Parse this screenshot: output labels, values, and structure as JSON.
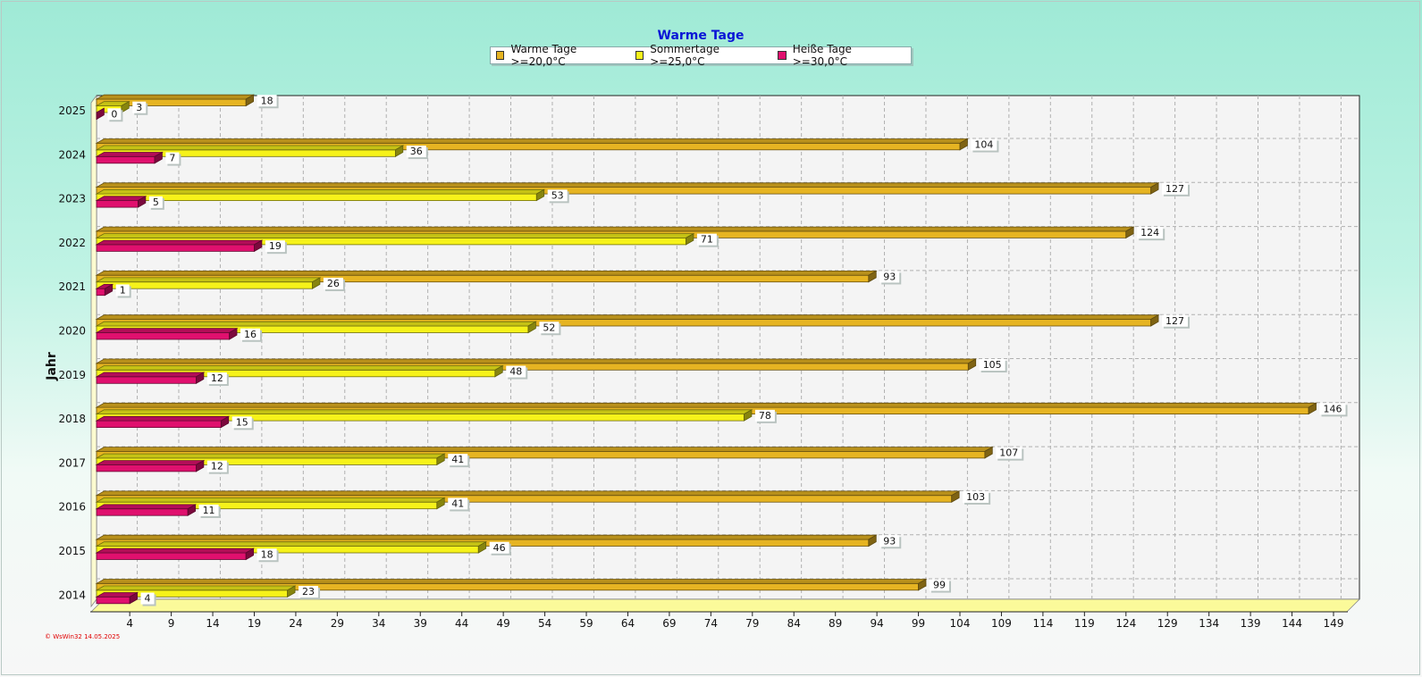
{
  "chart_data": {
    "type": "bar",
    "orientation": "horizontal",
    "title": "Warme Tage",
    "ylabel": "Jahr",
    "xlabel": "",
    "categories": [
      "2025",
      "2024",
      "2023",
      "2022",
      "2021",
      "2020",
      "2019",
      "2018",
      "2017",
      "2016",
      "2015",
      "2014"
    ],
    "series": [
      {
        "name": "Warme Tage >=20,0°C",
        "color": "#e6b422",
        "values": [
          18,
          104,
          127,
          124,
          93,
          127,
          105,
          146,
          107,
          103,
          93,
          99
        ]
      },
      {
        "name": "Sommertage >=25,0°C",
        "color": "#f6f21a",
        "values": [
          3,
          36,
          53,
          71,
          26,
          52,
          48,
          78,
          41,
          41,
          46,
          23
        ]
      },
      {
        "name": "Heiße Tage >=30,0°C",
        "color": "#e0106e",
        "values": [
          0,
          7,
          5,
          19,
          1,
          16,
          12,
          15,
          12,
          11,
          18,
          4
        ]
      }
    ],
    "xticks": [
      4,
      9,
      14,
      19,
      24,
      29,
      34,
      39,
      44,
      49,
      54,
      59,
      64,
      69,
      74,
      79,
      84,
      89,
      94,
      99,
      104,
      109,
      114,
      119,
      124,
      129,
      134,
      139,
      144,
      149
    ],
    "xlim": [
      0,
      149
    ],
    "grid": true,
    "legend_position": "top-center"
  },
  "footer_note": "© WsWin32  14.05.2025"
}
